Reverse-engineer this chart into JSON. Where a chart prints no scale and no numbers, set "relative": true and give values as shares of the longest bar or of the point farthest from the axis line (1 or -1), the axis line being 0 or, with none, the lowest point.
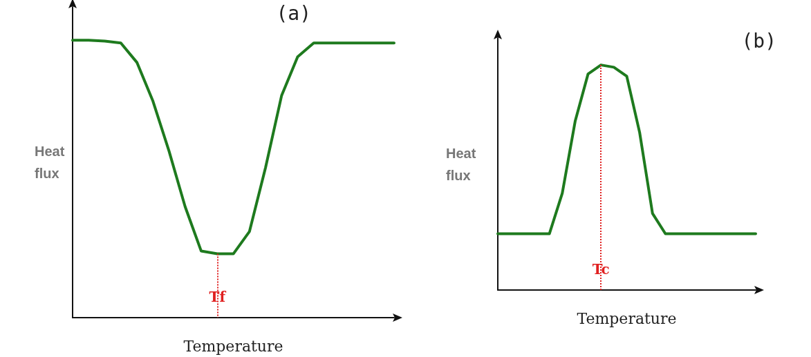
{
  "chart_data": [
    {
      "type": "line",
      "title": "(a)",
      "xlabel": "Temperature",
      "ylabel": "Heat flux",
      "relative": true,
      "marker": "none",
      "line_style": "solid",
      "categories": [
        null,
        null,
        null,
        null,
        null,
        null,
        null,
        null,
        null,
        null,
        null,
        null,
        null,
        null,
        null,
        null,
        null,
        null,
        null,
        null,
        null
      ],
      "series": [
        {
          "color": "#1e7a1e",
          "values": [
            1,
            1,
            0.997,
            0.99,
            0.92,
            0.78,
            0.6,
            0.4,
            0.24,
            0.23,
            0.23,
            0.31,
            0.54,
            0.8,
            0.94,
            0.99,
            0.99,
            0.99,
            0.99,
            0.99,
            0.99
          ]
        }
      ],
      "annotations": [
        "Tf"
      ]
    },
    {
      "type": "line",
      "title": "(b)",
      "xlabel": "Temperature",
      "ylabel": "Heat flux",
      "relative": true,
      "marker": "none",
      "line_style": "solid",
      "categories": [
        null,
        null,
        null,
        null,
        null,
        null,
        null,
        null,
        null,
        null,
        null,
        null,
        null,
        null,
        null,
        null,
        null,
        null,
        null,
        null,
        null
      ],
      "series": [
        {
          "color": "#1e7a1e",
          "values": [
            0.25,
            0.25,
            0.25,
            0.25,
            0.25,
            0.43,
            0.75,
            0.96,
            1,
            0.99,
            0.95,
            0.7,
            0.34,
            0.25,
            0.25,
            0.25,
            0.25,
            0.25,
            0.25,
            0.25,
            0.25
          ]
        }
      ],
      "annotations": [
        "Tc"
      ]
    }
  ]
}
